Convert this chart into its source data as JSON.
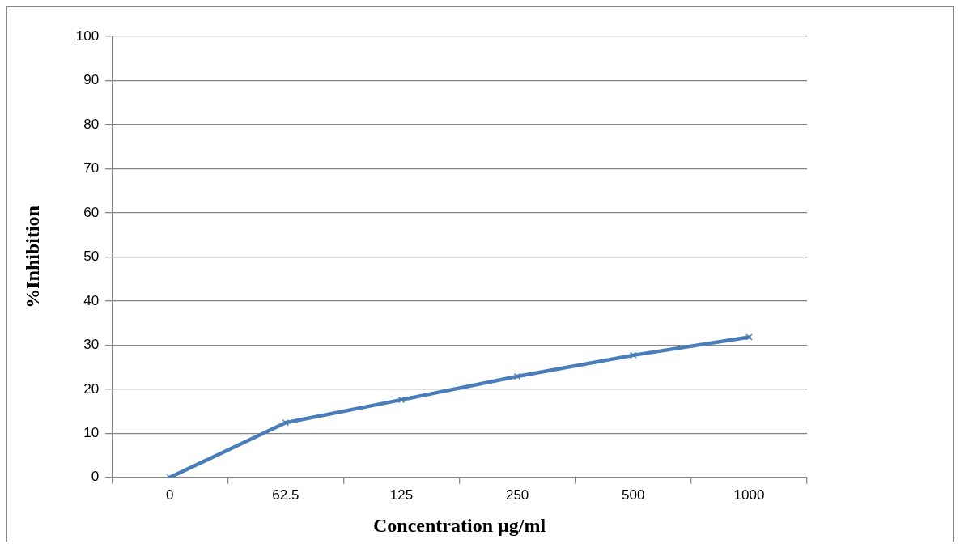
{
  "chart_data": {
    "type": "line",
    "xlabel": "Concentration µg/ml",
    "ylabel": "%Inhibition",
    "categories": [
      "0",
      "62.5",
      "125",
      "250",
      "500",
      "1000"
    ],
    "series": [
      {
        "color": "#4a7ebb",
        "values": [
          0,
          12.4,
          17.6,
          22.9,
          27.7,
          31.8
        ]
      }
    ],
    "ylim": [
      0,
      100
    ],
    "yticks": [
      0,
      10,
      20,
      30,
      40,
      50,
      60,
      70,
      80,
      90,
      100
    ],
    "grid": "y",
    "legend": false,
    "marker": "cross",
    "line_style": "solid"
  }
}
